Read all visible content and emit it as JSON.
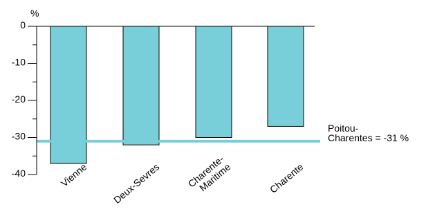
{
  "chart_data": {
    "type": "bar",
    "ylabel": "%",
    "ylim": [
      -40,
      0
    ],
    "yticks": [
      0,
      -10,
      -20,
      -30,
      -40
    ],
    "ytick_labels": [
      "0",
      "-10",
      "-20",
      "-30",
      "-40"
    ],
    "categories": [
      [
        "Vienne"
      ],
      [
        "Deux-Sevres"
      ],
      [
        "Charente-",
        "Maritime"
      ],
      [
        "Charente"
      ]
    ],
    "values": [
      -37,
      -32,
      -30,
      -27
    ],
    "reference_line": {
      "value": -31,
      "label": [
        "Poitou-",
        "Charentes = -31 %"
      ]
    },
    "colors": {
      "bar_fill": "#79cfd9",
      "bar_stroke": "#000000",
      "reference_line": "#79cfd9",
      "axis": "#000000"
    }
  }
}
